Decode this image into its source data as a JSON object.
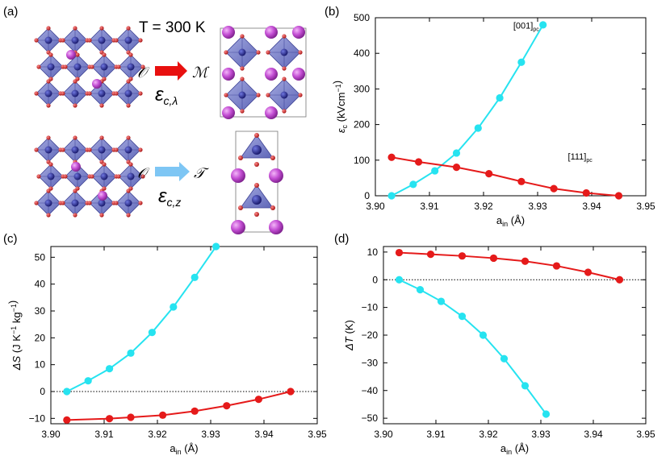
{
  "panels": {
    "a": "(a)",
    "b": "(b)",
    "c": "(c)",
    "d": "(d)"
  },
  "illustration": {
    "temperature": "T = 300 K",
    "top": {
      "from": "𝒪",
      "to": "ℳ",
      "strain": "ε",
      "strain_sub": "c,λ",
      "arrow_color": "#e8100f"
    },
    "bottom": {
      "from": "𝒪",
      "to": "𝒯",
      "strain": "ε",
      "strain_sub": "c,z",
      "arrow_color": "#7ec6f4"
    },
    "colors": {
      "octahedron": "#6f77c7",
      "oxygen": "#cc1f1f",
      "b_site": "#1f1f8f",
      "a_site": "#c44fd4"
    }
  },
  "chart_data": [
    {
      "id": "b",
      "type": "line",
      "xlabel": "a",
      "xlabel_sub": "in",
      "xlabel_unit": "(Å)",
      "ylabel": "ε",
      "ylabel_sub": "c",
      "ylabel_unit": "(kVcm",
      "ylabel_sup": "−1",
      "ylabel_close": ")",
      "xlim": [
        3.9,
        3.95
      ],
      "ylim": [
        0,
        500
      ],
      "xticks": [
        "3.90",
        "3.91",
        "3.92",
        "3.93",
        "3.94",
        "3.95"
      ],
      "yticks": [
        "0",
        "100",
        "200",
        "300",
        "400",
        "500"
      ],
      "zero_line": false,
      "annotations": [
        {
          "text": "[001]",
          "sub": "pc",
          "x": 3.9255,
          "y": 470
        },
        {
          "text": "[111]",
          "sub": "pc",
          "x": 3.9356,
          "y": 102
        }
      ],
      "series": [
        {
          "color": "#26e3f0",
          "x": [
            3.903,
            3.907,
            3.911,
            3.915,
            3.919,
            3.923,
            3.927,
            3.931
          ],
          "y": [
            0,
            32,
            70,
            120,
            190,
            275,
            375,
            480
          ]
        },
        {
          "color": "#e51a1a",
          "x": [
            3.903,
            3.908,
            3.915,
            3.921,
            3.927,
            3.933,
            3.939,
            3.945
          ],
          "y": [
            108,
            95,
            80,
            62,
            40,
            20,
            8,
            0
          ]
        }
      ]
    },
    {
      "id": "c",
      "type": "line",
      "xlabel": "a",
      "xlabel_sub": "in",
      "xlabel_unit": "(Å)",
      "ylabel": "ΔS",
      "ylabel_unit": "(J K",
      "ylabel_sup": "−1",
      "ylabel_mid": " kg",
      "ylabel_sup2": "−1",
      "ylabel_close": ")",
      "xlim": [
        3.9,
        3.95
      ],
      "ylim": [
        -12,
        54
      ],
      "xticks": [
        "3.90",
        "3.91",
        "3.92",
        "3.93",
        "3.94",
        "3.95"
      ],
      "yticks": [
        "−10",
        "0",
        "10",
        "20",
        "30",
        "40",
        "50"
      ],
      "ytick_values": [
        -10,
        0,
        10,
        20,
        30,
        40,
        50
      ],
      "zero_line": true,
      "annotations": [],
      "series": [
        {
          "color": "#26e3f0",
          "x": [
            3.903,
            3.907,
            3.911,
            3.915,
            3.919,
            3.923,
            3.927,
            3.931
          ],
          "y": [
            0,
            4,
            8.5,
            14.3,
            22,
            31.5,
            42.5,
            54
          ]
        },
        {
          "color": "#e51a1a",
          "x": [
            3.903,
            3.911,
            3.915,
            3.921,
            3.927,
            3.933,
            3.939,
            3.945
          ],
          "y": [
            -10.6,
            -10.1,
            -9.6,
            -8.8,
            -7.3,
            -5.3,
            -2.9,
            0
          ]
        }
      ]
    },
    {
      "id": "d",
      "type": "line",
      "xlabel": "a",
      "xlabel_sub": "in",
      "xlabel_unit": "(Å)",
      "ylabel": "ΔT",
      "ylabel_unit": "(K)",
      "xlim": [
        3.9,
        3.95
      ],
      "ylim": [
        -52,
        12
      ],
      "xticks": [
        "3.90",
        "3.91",
        "3.92",
        "3.93",
        "3.94",
        "3.95"
      ],
      "yticks": [
        "−50",
        "−40",
        "−30",
        "−20",
        "−10",
        "0",
        "10"
      ],
      "ytick_values": [
        -50,
        -40,
        -30,
        -20,
        -10,
        0,
        10
      ],
      "zero_line": true,
      "annotations": [],
      "series": [
        {
          "color": "#26e3f0",
          "x": [
            3.903,
            3.907,
            3.911,
            3.915,
            3.919,
            3.923,
            3.927,
            3.931
          ],
          "y": [
            0,
            -3.6,
            -7.8,
            -13.2,
            -20,
            -28.5,
            -38.3,
            -48.5
          ]
        },
        {
          "color": "#e51a1a",
          "x": [
            3.903,
            3.909,
            3.915,
            3.921,
            3.927,
            3.933,
            3.939,
            3.945
          ],
          "y": [
            9.8,
            9.2,
            8.6,
            7.8,
            6.7,
            5,
            2.7,
            0
          ]
        }
      ]
    }
  ]
}
